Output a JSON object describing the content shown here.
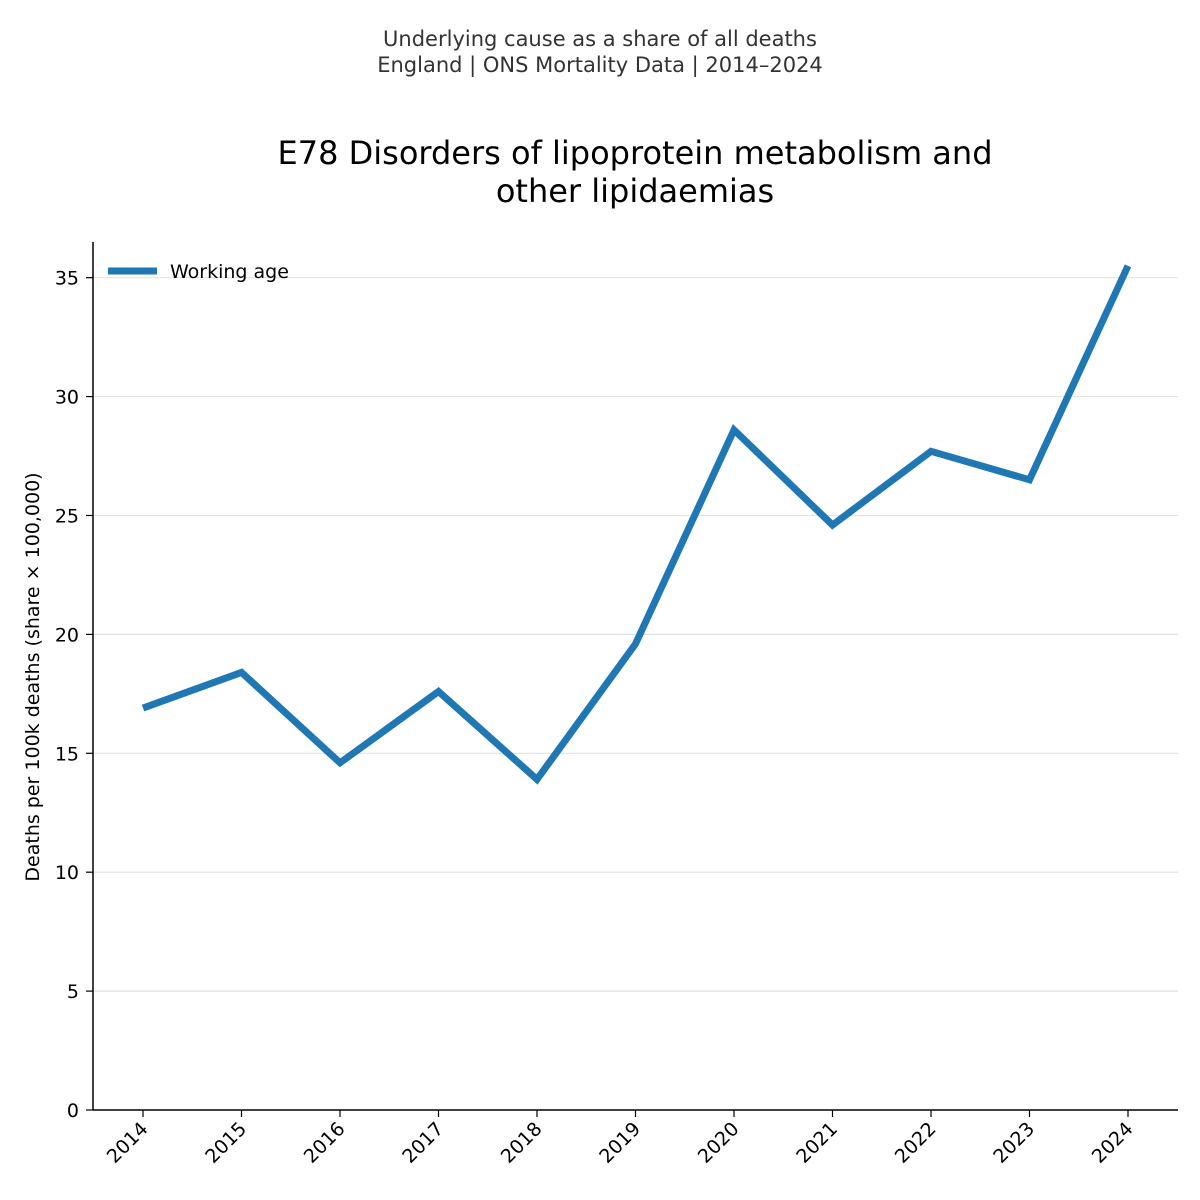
{
  "suptitle": {
    "line1": "Underlying cause as a share of all deaths",
    "line2": "England | ONS Mortality Data | 2014–2024"
  },
  "chart_data": {
    "type": "line",
    "title_line1": "E78 Disorders of lipoprotein metabolism and",
    "title_line2": "other lipidaemias",
    "xlabel": "",
    "ylabel": "Deaths per 100k deaths (share × 100,000)",
    "x": [
      "2014",
      "2015",
      "2016",
      "2017",
      "2018",
      "2019",
      "2020",
      "2021",
      "2022",
      "2023",
      "2024"
    ],
    "series": [
      {
        "name": "Working age",
        "color": "#1f77b4",
        "values": [
          16.9,
          18.4,
          14.6,
          17.6,
          13.9,
          19.6,
          28.6,
          24.6,
          27.7,
          26.5,
          35.5
        ]
      }
    ],
    "ylim": [
      0,
      36.5
    ],
    "yticks": [
      0,
      5,
      10,
      15,
      20,
      25,
      30,
      35
    ],
    "grid": "horizontal",
    "legend_position": "top-left"
  }
}
